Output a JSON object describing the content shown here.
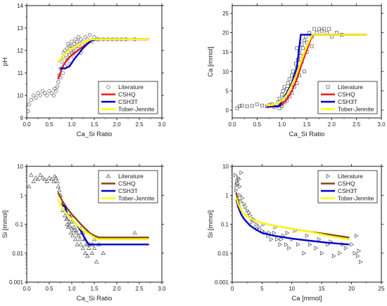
{
  "chart_data": [
    {
      "type": "scatter",
      "xlabel": "Ca_Si Ratio",
      "ylabel": "pH",
      "xlim": [
        0,
        3
      ],
      "ylim": [
        9,
        14
      ],
      "yscale": "linear",
      "xticks": [
        "0.0",
        "0.5",
        "1.0",
        "1.5",
        "2.0",
        "2.5",
        "3.0"
      ],
      "yticks": [
        "9",
        "10",
        "11",
        "12",
        "13",
        "14"
      ],
      "legend": {
        "placement": "lower-right",
        "entries": [
          "Literature",
          "CSHQ",
          "CSH3T",
          "Tober-Jennite"
        ]
      },
      "scatter": {
        "name": "Literature",
        "marker": "circle",
        "x": [
          0.03,
          0.05,
          0.1,
          0.15,
          0.2,
          0.25,
          0.3,
          0.35,
          0.4,
          0.45,
          0.5,
          0.55,
          0.6,
          0.62,
          0.65,
          0.68,
          0.7,
          0.72,
          0.75,
          0.78,
          0.8,
          0.82,
          0.85,
          0.88,
          0.9,
          0.92,
          0.95,
          0.98,
          1.0,
          1.02,
          1.05,
          1.08,
          1.1,
          1.12,
          1.15,
          1.18,
          1.2,
          1.25,
          1.3,
          1.35,
          1.4,
          1.45,
          1.5,
          1.55,
          1.6,
          1.7,
          1.8,
          1.9,
          2.0,
          2.1,
          2.2,
          2.4,
          0.85,
          0.9,
          0.95,
          1.0,
          1.05,
          1.1,
          0.75,
          0.8,
          1.15,
          1.2,
          1.3,
          0.95,
          1.0,
          1.05
        ],
        "y": [
          9.3,
          9.6,
          9.8,
          10.0,
          9.9,
          10.1,
          10.0,
          10.2,
          10.1,
          10.0,
          10.2,
          10.1,
          10.0,
          10.3,
          10.2,
          10.4,
          10.6,
          10.9,
          11.2,
          11.5,
          11.7,
          11.9,
          12.0,
          11.8,
          12.1,
          12.3,
          12.2,
          12.0,
          12.4,
          12.1,
          12.3,
          12.5,
          12.2,
          12.4,
          12.6,
          12.3,
          12.5,
          12.4,
          12.6,
          12.5,
          12.7,
          12.4,
          12.6,
          12.5,
          12.5,
          12.5,
          12.5,
          12.5,
          12.5,
          12.5,
          12.5,
          12.5,
          11.3,
          11.6,
          11.4,
          11.9,
          11.7,
          12.0,
          10.8,
          11.0,
          12.2,
          11.9,
          12.3,
          11.8,
          12.2,
          11.9
        ]
      },
      "series": [
        {
          "name": "CSHQ",
          "color": "#e41a1c",
          "x": [
            0.7,
            0.8,
            0.9,
            1.0,
            1.1,
            1.2,
            1.3,
            1.4,
            1.5,
            1.6,
            2.7
          ],
          "y": [
            10.75,
            11.3,
            11.6,
            11.8,
            11.95,
            12.1,
            12.25,
            12.4,
            12.5,
            12.5,
            12.5
          ]
        },
        {
          "name": "CSH3T",
          "color": "#0000cc",
          "x": [
            0.75,
            0.85,
            0.95,
            1.05,
            1.15,
            1.25,
            1.35,
            1.45,
            1.55,
            2.7
          ],
          "y": [
            11.2,
            11.2,
            11.3,
            11.6,
            11.85,
            12.1,
            12.3,
            12.45,
            12.5,
            12.5
          ]
        },
        {
          "name": "Tober-Jennite",
          "color": "#ffff00",
          "x": [
            0.7,
            0.8,
            0.9,
            1.0,
            1.1,
            1.2,
            1.3,
            1.45,
            1.6,
            2.7
          ],
          "y": [
            11.5,
            11.75,
            11.95,
            12.1,
            12.2,
            12.3,
            12.4,
            12.5,
            12.5,
            12.5
          ]
        }
      ]
    },
    {
      "type": "scatter",
      "xlabel": "Ca_Si Ratio",
      "ylabel": "Ca [mmol]",
      "xlim": [
        0,
        3
      ],
      "ylim": [
        -2,
        27
      ],
      "yscale": "linear",
      "xticks": [
        "0.0",
        "0.5",
        "1.0",
        "1.5",
        "2.0",
        "2.5",
        "3.0"
      ],
      "yticks": [
        "0",
        "5",
        "10",
        "15",
        "20",
        "25"
      ],
      "legend": {
        "placement": "lower-right",
        "entries": [
          "Literature",
          "CSHQ",
          "CSH3T",
          "Tober-Jennite"
        ]
      },
      "scatter": {
        "name": "Literature",
        "marker": "square",
        "x": [
          0.1,
          0.15,
          0.2,
          0.3,
          0.4,
          0.5,
          0.6,
          0.7,
          0.75,
          0.8,
          0.85,
          0.9,
          0.92,
          0.95,
          0.98,
          1.0,
          1.02,
          1.05,
          1.08,
          1.1,
          1.12,
          1.15,
          1.18,
          1.2,
          1.22,
          1.25,
          1.28,
          1.3,
          1.32,
          1.35,
          1.38,
          1.4,
          1.42,
          1.45,
          1.48,
          1.5,
          1.55,
          1.6,
          1.65,
          1.7,
          1.75,
          1.8,
          1.85,
          1.9,
          1.95,
          2.0,
          2.1,
          2.2,
          1.3,
          1.35,
          1.4,
          1.2,
          1.25,
          1.1,
          1.15,
          1.5,
          1.6,
          1.45,
          0.95,
          1.0,
          1.05,
          1.3
        ],
        "y": [
          0.5,
          1.0,
          1.2,
          1.0,
          1.1,
          1.5,
          1.2,
          1.0,
          1.3,
          1.5,
          0.8,
          1.2,
          2.0,
          3.0,
          1.5,
          4.0,
          5.0,
          6.0,
          3.5,
          5.5,
          7.0,
          8.0,
          6.5,
          9.0,
          10.0,
          8.5,
          12.0,
          11.0,
          13.0,
          15.0,
          14.0,
          17.0,
          16.0,
          18.0,
          19.0,
          17.5,
          20.0,
          19.0,
          21.0,
          20.0,
          21.0,
          20.5,
          21.0,
          20.0,
          21.0,
          19.0,
          20.0,
          19.5,
          7.0,
          9.0,
          12.5,
          4.5,
          6.0,
          2.5,
          3.5,
          15.0,
          16.5,
          10.0,
          0.5,
          1.0,
          2.0,
          16.0
        ]
      },
      "series": [
        {
          "name": "CSHQ",
          "color": "#e41a1c",
          "x": [
            0.7,
            0.8,
            0.9,
            1.0,
            1.1,
            1.2,
            1.3,
            1.4,
            1.5,
            1.6,
            1.65,
            2.7
          ],
          "y": [
            0.8,
            0.9,
            1.0,
            1.5,
            2.8,
            5.0,
            8.0,
            12.0,
            15.5,
            19.0,
            19.5,
            19.5
          ]
        },
        {
          "name": "CSH3T",
          "color": "#0000cc",
          "x": [
            0.7,
            0.85,
            0.95,
            1.0,
            1.1,
            1.2,
            1.3,
            1.38,
            1.4,
            1.45,
            2.7
          ],
          "y": [
            1.0,
            1.0,
            1.0,
            2.5,
            4.5,
            7.0,
            11.0,
            19.5,
            19.5,
            19.5,
            19.5
          ]
        },
        {
          "name": "Tober-Jennite",
          "color": "#ffff00",
          "x": [
            0.7,
            0.8,
            0.9,
            1.0,
            1.1,
            1.2,
            1.3,
            1.4,
            1.5,
            1.6,
            1.62,
            2.7
          ],
          "y": [
            1.2,
            1.3,
            1.6,
            2.5,
            4.0,
            6.5,
            9.5,
            13.0,
            16.5,
            19.3,
            19.5,
            19.5
          ]
        }
      ]
    },
    {
      "type": "scatter",
      "xlabel": "Ca_Si Ratio",
      "ylabel": "Si [mmol]",
      "xlim": [
        0,
        3
      ],
      "ylim": [
        0.001,
        10
      ],
      "yscale": "log",
      "xticks": [
        "0.0",
        "0.5",
        "1.0",
        "1.5",
        "2.0",
        "2.5",
        "3.0"
      ],
      "yticks": [
        "0.001",
        "0.01",
        "0.1",
        "1",
        "10"
      ],
      "legend": {
        "placement": "top-right",
        "entries": [
          "Literature",
          "CSHQ",
          "CSH3T",
          "Tober-Jennite"
        ]
      },
      "scatter": {
        "name": "Literature",
        "marker": "triangle",
        "x": [
          0.05,
          0.1,
          0.15,
          0.2,
          0.25,
          0.3,
          0.35,
          0.4,
          0.45,
          0.5,
          0.55,
          0.6,
          0.62,
          0.65,
          0.68,
          0.7,
          0.72,
          0.75,
          0.78,
          0.8,
          0.82,
          0.85,
          0.88,
          0.9,
          0.92,
          0.95,
          0.98,
          1.0,
          1.02,
          1.05,
          1.08,
          1.1,
          1.12,
          1.15,
          1.18,
          1.2,
          1.22,
          1.25,
          1.28,
          1.3,
          1.32,
          1.35,
          1.38,
          1.4,
          1.45,
          1.5,
          1.55,
          1.6,
          1.7,
          0.85,
          0.9,
          0.95,
          1.0,
          1.05,
          1.1,
          1.15,
          1.2,
          1.25,
          1.3,
          1.35,
          2.4,
          1.5,
          1.45,
          1.0
        ],
        "y": [
          2.0,
          5.0,
          3.0,
          4.0,
          3.5,
          5.0,
          4.0,
          3.5,
          3.0,
          4.0,
          3.5,
          3.0,
          4.5,
          4.0,
          3.0,
          2.0,
          1.5,
          1.0,
          0.5,
          0.3,
          0.5,
          0.2,
          0.15,
          0.1,
          0.08,
          0.12,
          0.05,
          0.07,
          0.04,
          0.06,
          0.03,
          0.05,
          0.02,
          0.04,
          0.03,
          0.02,
          0.05,
          0.015,
          0.03,
          0.01,
          0.02,
          0.008,
          0.015,
          0.02,
          0.01,
          0.03,
          0.005,
          0.02,
          0.01,
          0.3,
          0.15,
          0.09,
          0.12,
          0.08,
          0.06,
          0.04,
          0.07,
          0.05,
          0.03,
          0.02,
          0.05,
          0.015,
          0.02,
          0.2
        ]
      },
      "series": [
        {
          "name": "CSHQ",
          "color": "#8b4513",
          "x": [
            0.7,
            0.8,
            0.9,
            1.0,
            1.1,
            1.2,
            1.3,
            1.4,
            1.5,
            1.6,
            1.65,
            2.7
          ],
          "y": [
            1.2,
            0.6,
            0.35,
            0.22,
            0.15,
            0.1,
            0.07,
            0.05,
            0.04,
            0.035,
            0.035,
            0.035
          ]
        },
        {
          "name": "CSH3T",
          "color": "#0000cc",
          "x": [
            0.75,
            0.85,
            0.9,
            0.95,
            1.0,
            1.1,
            1.2,
            1.3,
            1.38,
            1.4,
            2.7
          ],
          "y": [
            0.5,
            0.4,
            0.22,
            0.2,
            0.15,
            0.1,
            0.06,
            0.03,
            0.02,
            0.02,
            0.02
          ]
        },
        {
          "name": "Tober-Jennite",
          "color": "#ffff00",
          "x": [
            0.7,
            0.8,
            0.9,
            1.0,
            1.1,
            1.2,
            1.3,
            1.4,
            1.5,
            1.6,
            2.7
          ],
          "y": [
            0.7,
            0.35,
            0.22,
            0.15,
            0.1,
            0.07,
            0.055,
            0.045,
            0.035,
            0.03,
            0.03
          ]
        }
      ]
    },
    {
      "type": "scatter",
      "xlabel": "Ca [mmol]",
      "ylabel": "Si [mmol]",
      "xlim": [
        0,
        25
      ],
      "ylim": [
        0.001,
        10
      ],
      "yscale": "log",
      "xticks": [
        "0",
        "5",
        "10",
        "15",
        "20",
        "25"
      ],
      "yticks": [
        "0.001",
        "0.01",
        "0.1",
        "1",
        "10"
      ],
      "legend": {
        "placement": "top-right",
        "entries": [
          "Literature",
          "CSHQ",
          "CSH3T",
          "Tober-Jennite"
        ]
      },
      "scatter": {
        "name": "Literature",
        "marker": "triangle-right",
        "x": [
          0.5,
          0.8,
          1.0,
          1.2,
          1.5,
          0.6,
          0.9,
          1.1,
          1.3,
          1.7,
          2.0,
          2.5,
          3.0,
          3.5,
          4.0,
          4.5,
          5.0,
          5.5,
          6.0,
          6.5,
          7.0,
          7.5,
          8.0,
          8.5,
          9.0,
          9.5,
          10.0,
          11.0,
          12.0,
          13.0,
          14.0,
          15.0,
          16.0,
          17.0,
          18.0,
          19.0,
          20.0,
          20.5,
          21.0,
          21.5,
          2.2,
          2.8,
          3.3,
          4.2,
          5.2,
          6.2,
          7.2,
          8.2,
          9.2,
          10.5,
          12.5,
          14.5,
          16.5,
          18.5,
          20.8,
          21.2,
          1.0,
          1.4,
          0.7
        ],
        "y": [
          5.0,
          3.0,
          4.0,
          2.0,
          6.0,
          1.5,
          2.5,
          3.5,
          1.0,
          0.8,
          0.5,
          0.3,
          0.2,
          0.15,
          0.1,
          0.08,
          0.06,
          0.05,
          0.04,
          0.03,
          0.05,
          0.03,
          0.02,
          0.04,
          0.02,
          0.015,
          0.03,
          0.02,
          0.01,
          0.02,
          0.015,
          0.01,
          0.02,
          0.008,
          0.01,
          0.015,
          0.02,
          0.01,
          0.008,
          0.005,
          0.4,
          0.25,
          0.12,
          0.07,
          0.1,
          0.05,
          0.08,
          0.03,
          0.05,
          0.06,
          0.04,
          0.03,
          0.025,
          0.02,
          0.04,
          0.012,
          0.7,
          0.6,
          2.2
        ]
      },
      "series": [
        {
          "name": "CSHQ",
          "color": "#8b4513",
          "x": [
            0.7,
            1.0,
            1.5,
            2.0,
            3.0,
            4.0,
            5.0,
            7.0,
            10.0,
            13.0,
            16.0,
            19.5
          ],
          "y": [
            1.2,
            0.55,
            0.3,
            0.22,
            0.16,
            0.13,
            0.11,
            0.09,
            0.07,
            0.055,
            0.045,
            0.035
          ]
        },
        {
          "name": "CSH3T",
          "color": "#0000cc",
          "x": [
            0.7,
            1.0,
            1.5,
            2.0,
            3.0,
            4.0,
            5.0,
            7.0,
            10.0,
            13.0,
            16.0,
            19.5
          ],
          "y": [
            0.7,
            0.4,
            0.22,
            0.15,
            0.09,
            0.065,
            0.05,
            0.04,
            0.032,
            0.027,
            0.023,
            0.02
          ]
        },
        {
          "name": "Tober-Jennite",
          "color": "#ffff00",
          "x": [
            0.7,
            1.0,
            1.5,
            2.0,
            3.0,
            4.0,
            5.0,
            7.0,
            10.0,
            13.0,
            16.0,
            19.5
          ],
          "y": [
            0.8,
            0.5,
            0.3,
            0.22,
            0.16,
            0.13,
            0.11,
            0.09,
            0.07,
            0.055,
            0.04,
            0.03
          ]
        }
      ]
    }
  ]
}
